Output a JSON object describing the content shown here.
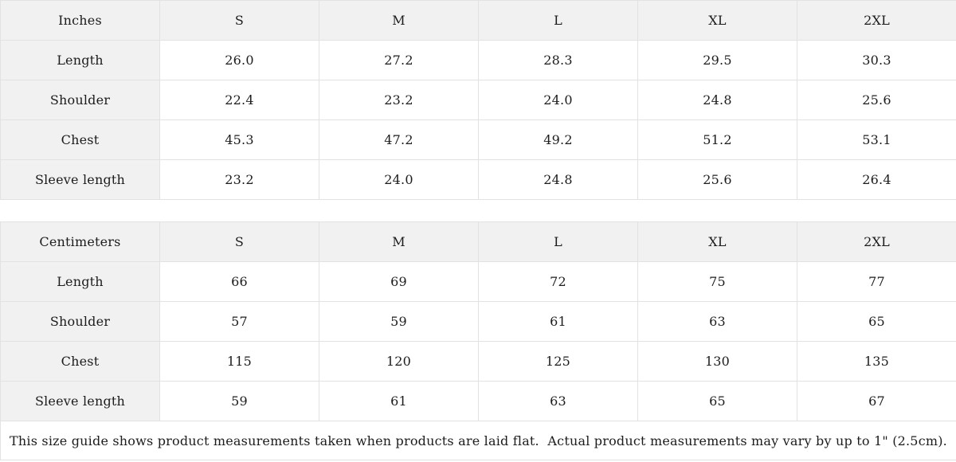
{
  "page": {
    "background_color": "#ffffff",
    "border_color": "#e2e2e2",
    "shaded_cell_color": "#f1f1f1",
    "text_color": "#1c1c1c"
  },
  "size_guide": {
    "sections": [
      {
        "unit_label": "Inches",
        "sizes": [
          "S",
          "M",
          "L",
          "XL",
          "2XL"
        ],
        "rows": [
          {
            "label": "Length",
            "values": [
              "26.0",
              "27.2",
              "28.3",
              "29.5",
              "30.3"
            ]
          },
          {
            "label": "Shoulder",
            "values": [
              "22.4",
              "23.2",
              "24.0",
              "24.8",
              "25.6"
            ]
          },
          {
            "label": "Chest",
            "values": [
              "45.3",
              "47.2",
              "49.2",
              "51.2",
              "53.1"
            ]
          },
          {
            "label": "Sleeve length",
            "values": [
              "23.2",
              "24.0",
              "24.8",
              "25.6",
              "26.4"
            ]
          }
        ]
      },
      {
        "unit_label": "Centimeters",
        "sizes": [
          "S",
          "M",
          "L",
          "XL",
          "2XL"
        ],
        "rows": [
          {
            "label": "Length",
            "values": [
              "66",
              "69",
              "72",
              "75",
              "77"
            ]
          },
          {
            "label": "Shoulder",
            "values": [
              "57",
              "59",
              "61",
              "63",
              "65"
            ]
          },
          {
            "label": "Chest",
            "values": [
              "115",
              "120",
              "125",
              "130",
              "135"
            ]
          },
          {
            "label": "Sleeve length",
            "values": [
              "59",
              "61",
              "63",
              "65",
              "67"
            ]
          }
        ]
      }
    ],
    "note": "This size guide shows product measurements taken when products are laid flat.  Actual product measurements may vary by up to 1\" (2.5cm)."
  }
}
